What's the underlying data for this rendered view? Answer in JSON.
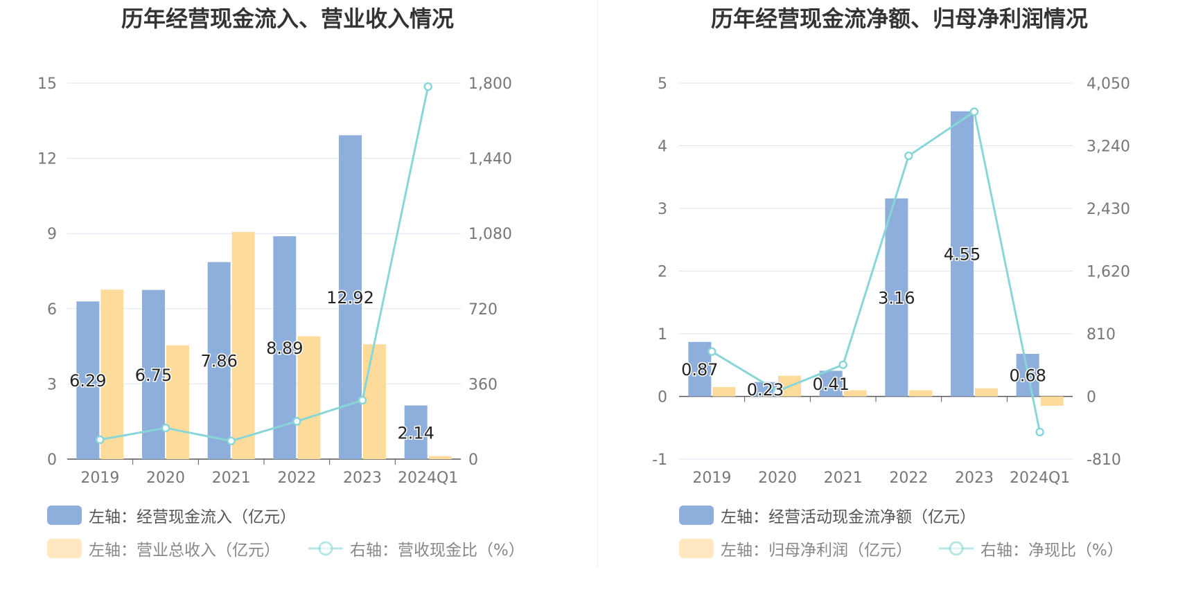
{
  "colors": {
    "bar_primary": "#8eaedb",
    "bar_secondary": "#fddb9b",
    "line": "#88d6d8",
    "grid": "#dde3f1",
    "axis": "#555555",
    "tick_text": "#777777",
    "title_text": "#333333",
    "legend_text": "#555555",
    "legend_text_muted": "#888888"
  },
  "chart_data": [
    {
      "type": "bar",
      "title": "历年经营现金流入、营业收入情况",
      "categories": [
        "2019",
        "2020",
        "2021",
        "2022",
        "2023",
        "2024Q1"
      ],
      "left_axis": {
        "ticks": [
          "0",
          "3",
          "6",
          "9",
          "12",
          "15"
        ],
        "range": [
          0,
          15
        ]
      },
      "right_axis": {
        "ticks": [
          "0",
          "360",
          "720",
          "1,080",
          "1,440",
          "1,800"
        ],
        "range": [
          0,
          1800
        ]
      },
      "grid": true,
      "legend_position": "bottom-left",
      "series": [
        {
          "name": "左轴：经营现金流入（亿元）",
          "type": "bar",
          "axis": "left",
          "values": [
            6.29,
            6.75,
            7.86,
            8.89,
            12.92,
            2.14
          ],
          "labels": [
            "6.29",
            "6.75",
            "7.86",
            "8.89",
            "12.92",
            "2.14"
          ]
        },
        {
          "name": "左轴：营业总收入（亿元）",
          "type": "bar",
          "axis": "left",
          "values": [
            6.76,
            4.54,
            9.06,
            4.9,
            4.58,
            0.12
          ]
        },
        {
          "name": "右轴：营收现金比（%）",
          "type": "line",
          "axis": "right",
          "values": [
            93,
            149,
            87,
            181,
            282,
            1783
          ]
        }
      ]
    },
    {
      "type": "bar",
      "title": "历年经营现金流净额、归母净利润情况",
      "categories": [
        "2019",
        "2020",
        "2021",
        "2022",
        "2023",
        "2024Q1"
      ],
      "left_axis": {
        "ticks": [
          "-1",
          "0",
          "1",
          "2",
          "3",
          "4",
          "5"
        ],
        "range": [
          -1,
          5
        ]
      },
      "right_axis": {
        "ticks": [
          "-810",
          "0",
          "810",
          "1,620",
          "2,430",
          "3,240",
          "4,050"
        ],
        "range": [
          -810,
          4050
        ]
      },
      "grid": true,
      "legend_position": "bottom-left",
      "series": [
        {
          "name": "左轴：经营活动现金流净额（亿元）",
          "type": "bar",
          "axis": "left",
          "values": [
            0.87,
            0.23,
            0.41,
            3.16,
            4.55,
            0.68
          ],
          "labels": [
            "0.87",
            "0.23",
            "0.41",
            "3.16",
            "4.55",
            "0.68"
          ]
        },
        {
          "name": "左轴：归母净利润（亿元）",
          "type": "bar",
          "axis": "left",
          "values": [
            0.15,
            0.33,
            0.1,
            0.1,
            0.13,
            -0.15
          ]
        },
        {
          "name": "右轴：净现比（%）",
          "type": "line",
          "axis": "right",
          "values": [
            580,
            70,
            410,
            3110,
            3680,
            -460
          ]
        }
      ]
    }
  ]
}
